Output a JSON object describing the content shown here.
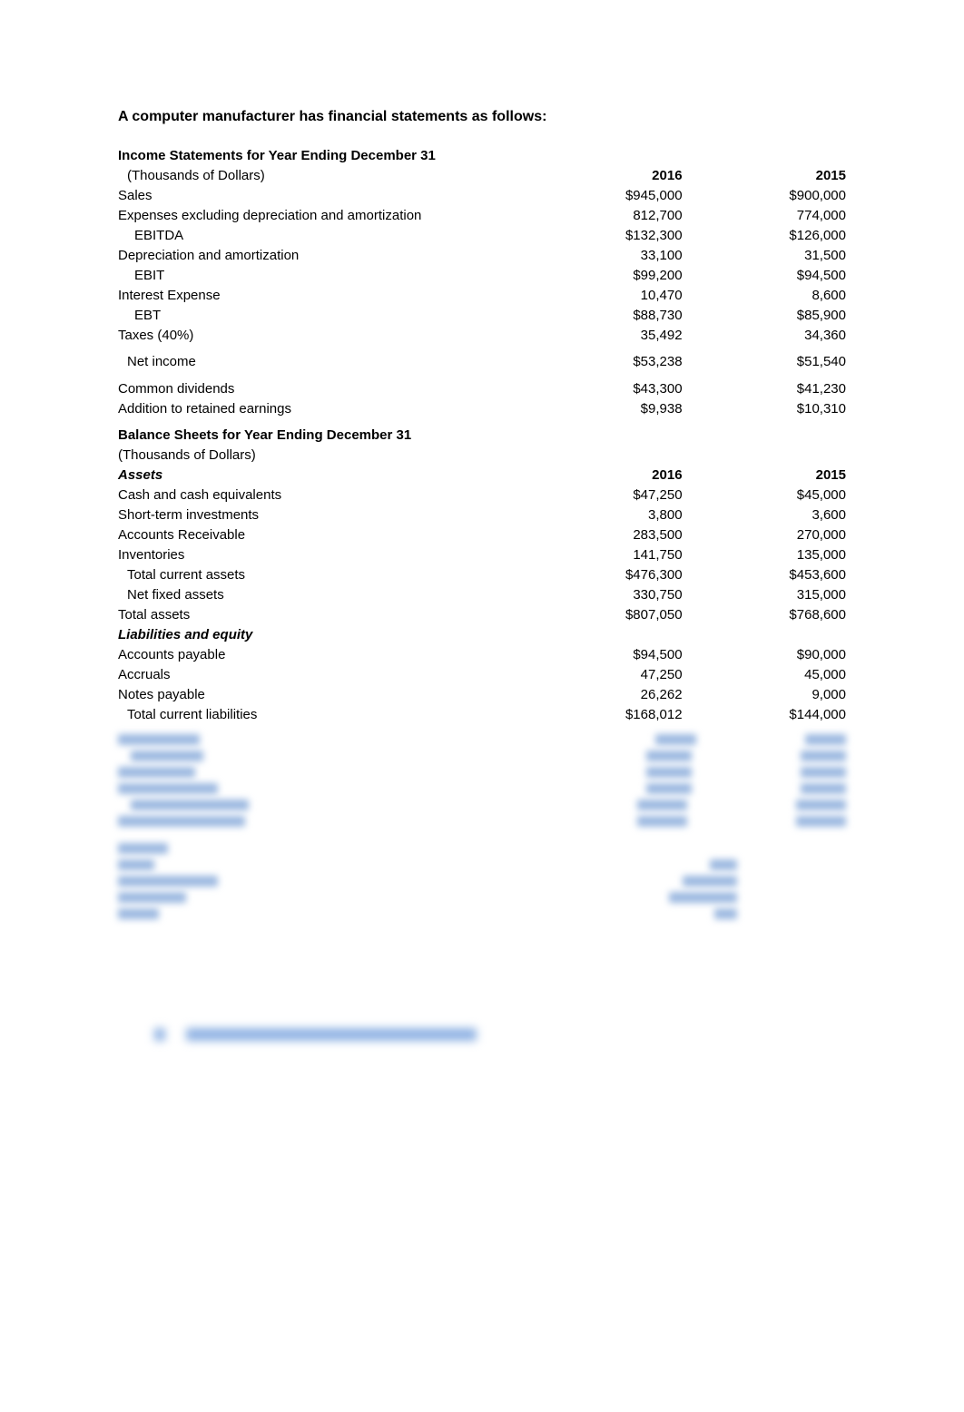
{
  "title": "A computer manufacturer has financial statements as follows:",
  "income_header": "Income Statements for Year Ending December 31",
  "balance_header": "Balance Sheets for Year Ending December 31",
  "subheader_units": "(Thousands of Dollars)",
  "year_col1": "2016",
  "year_col2": "2015",
  "income_rows": [
    {
      "label": "Sales",
      "v1": "$945,000",
      "v2": "$900,000",
      "indent": 0
    },
    {
      "label": "Expenses excluding depreciation and amortization",
      "v1": "812,700",
      "v2": "774,000",
      "indent": 0
    },
    {
      "label": "EBITDA",
      "v1": "$132,300",
      "v2": "$126,000",
      "indent": 2
    },
    {
      "label": "Depreciation and amortization",
      "v1": "33,100",
      "v2": "31,500",
      "indent": 0
    },
    {
      "label": "EBIT",
      "v1": "$99,200",
      "v2": "$94,500",
      "indent": 2
    },
    {
      "label": "Interest Expense",
      "v1": "10,470",
      "v2": "8,600",
      "indent": 0
    },
    {
      "label": "EBT",
      "v1": "$88,730",
      "v2": "$85,900",
      "indent": 2
    },
    {
      "label": "Taxes (40%)",
      "v1": "35,492",
      "v2": "34,360",
      "indent": 0
    },
    {
      "label": "Net income",
      "v1": "$53,238",
      "v2": "$51,540",
      "indent": 1,
      "gap_before": true
    },
    {
      "label": "Common dividends",
      "v1": "$43,300",
      "v2": "$41,230",
      "indent": 0,
      "gap_before": true
    },
    {
      "label": "Addition to retained earnings",
      "v1": "$9,938",
      "v2": "$10,310",
      "indent": 0
    }
  ],
  "assets_label": "Assets",
  "asset_rows": [
    {
      "label": "Cash and cash equivalents",
      "v1": "$47,250",
      "v2": "$45,000",
      "indent": 0
    },
    {
      "label": "Short-term investments",
      "v1": "3,800",
      "v2": "3,600",
      "indent": 0
    },
    {
      "label": "Accounts Receivable",
      "v1": "283,500",
      "v2": "270,000",
      "indent": 0
    },
    {
      "label": "Inventories",
      "v1": "141,750",
      "v2": "135,000",
      "indent": 0
    },
    {
      "label": "Total current assets",
      "v1": "$476,300",
      "v2": "$453,600",
      "indent": 1
    },
    {
      "label": "Net fixed assets",
      "v1": "330,750",
      "v2": "315,000",
      "indent": 1
    },
    {
      "label": "Total assets",
      "v1": "$807,050",
      "v2": "$768,600",
      "indent": 0
    }
  ],
  "liab_label": "Liabilities and equity",
  "liab_rows": [
    {
      "label": "Accounts payable",
      "v1": "$94,500",
      "v2": "$90,000",
      "indent": 0
    },
    {
      "label": "Accruals",
      "v1": "47,250",
      "v2": "45,000",
      "indent": 0
    },
    {
      "label": "Notes payable",
      "v1": "26,262",
      "v2": "9,000",
      "indent": 0
    },
    {
      "label": "Total current liabilities",
      "v1": "$168,012",
      "v2": "$144,000",
      "indent": 1
    }
  ],
  "blur_block1": [
    {
      "lw": 90,
      "n1w": 45,
      "n2w": 45
    },
    {
      "lw": 80,
      "n1w": 50,
      "n2w": 50,
      "indent": 14
    },
    {
      "lw": 85,
      "n1w": 50,
      "n2w": 50
    },
    {
      "lw": 110,
      "n1w": 50,
      "n2w": 50
    },
    {
      "lw": 130,
      "n1w": 55,
      "n2w": 55,
      "indent": 14
    },
    {
      "lw": 140,
      "n1w": 55,
      "n2w": 55
    }
  ],
  "blur_block2": [
    {
      "lw": 55,
      "n1w": 0,
      "n2w": 0
    },
    {
      "lw": 40,
      "n1w": 30,
      "n2w": 0
    },
    {
      "lw": 110,
      "n1w": 60,
      "n2w": 0
    },
    {
      "lw": 75,
      "n1w": 75,
      "n2w": 0
    },
    {
      "lw": 45,
      "n1w": 25,
      "n2w": 0
    }
  ],
  "question_blur": {
    "num_w": 12,
    "text_w": 320
  }
}
